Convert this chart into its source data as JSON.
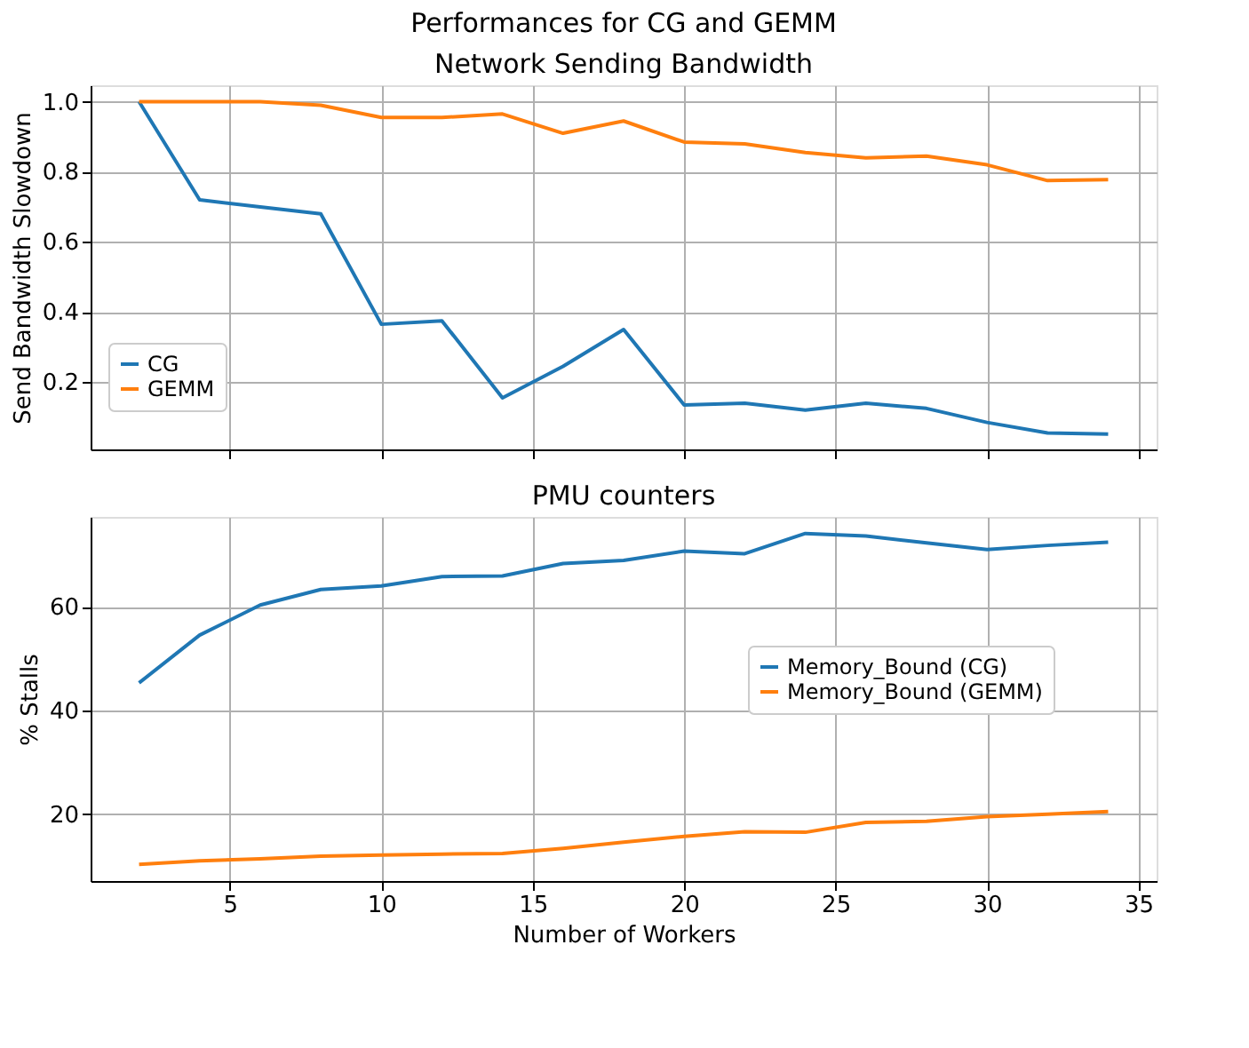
{
  "chart_data": [
    {
      "type": "line",
      "title": "Performances for CG and GEMM",
      "subtitle": "Network Sending Bandwidth",
      "ylabel": "Send Bandwidth Slowdown",
      "x": [
        2,
        4,
        6,
        8,
        10,
        12,
        14,
        16,
        18,
        20,
        22,
        24,
        26,
        28,
        30,
        32,
        34
      ],
      "series": [
        {
          "name": "CG",
          "color": "#1f77b4",
          "values": [
            1.0,
            0.72,
            0.7,
            0.68,
            0.365,
            0.375,
            0.155,
            0.245,
            0.35,
            0.135,
            0.14,
            0.12,
            0.14,
            0.125,
            0.085,
            0.055,
            0.052
          ]
        },
        {
          "name": "GEMM",
          "color": "#ff7f0e",
          "values": [
            1.0,
            1.0,
            1.0,
            0.99,
            0.955,
            0.955,
            0.965,
            0.91,
            0.945,
            0.885,
            0.88,
            0.855,
            0.84,
            0.845,
            0.82,
            0.775,
            0.778
          ]
        }
      ],
      "xlim": [
        0.4,
        35.6
      ],
      "xticks": [
        5,
        10,
        15,
        20,
        25,
        30,
        35
      ],
      "ylim": [
        0.008,
        1.047
      ],
      "yticks": [
        {
          "value": 0.2,
          "label": "0.2"
        },
        {
          "value": 0.4,
          "label": "0.4"
        },
        {
          "value": 0.6,
          "label": "0.6"
        },
        {
          "value": 0.8,
          "label": "0.8"
        },
        {
          "value": 1.0,
          "label": "1.0"
        }
      ],
      "grid": true,
      "legend": "bottom left",
      "tick_labels": "y"
    },
    {
      "type": "line",
      "title": "PMU counters",
      "xlabel": "Number of Workers",
      "ylabel": "% Stalls",
      "x": [
        2,
        4,
        6,
        8,
        10,
        12,
        14,
        16,
        18,
        20,
        22,
        24,
        26,
        28,
        30,
        32,
        34
      ],
      "series": [
        {
          "name": "Memory_Bound (CG)",
          "color": "#1f77b4",
          "values": [
            45.3,
            54.5,
            60.3,
            63.3,
            64.0,
            65.8,
            65.9,
            68.3,
            68.9,
            70.7,
            70.2,
            74.1,
            73.6,
            72.3,
            71.0,
            71.8,
            72.4
          ]
        },
        {
          "name": "Memory_Bound (GEMM)",
          "color": "#ff7f0e",
          "values": [
            10.3,
            11.0,
            11.4,
            11.9,
            12.1,
            12.3,
            12.4,
            13.4,
            14.6,
            15.7,
            16.6,
            16.5,
            18.4,
            18.6,
            19.5,
            20.0,
            20.5
          ]
        }
      ],
      "xlim": [
        0.4,
        35.6
      ],
      "xticks": [
        5,
        10,
        15,
        20,
        25,
        30,
        35
      ],
      "ylim": [
        7.1,
        77.3
      ],
      "yticks": [
        20,
        40,
        60
      ],
      "grid": true,
      "legend": "right"
    }
  ]
}
